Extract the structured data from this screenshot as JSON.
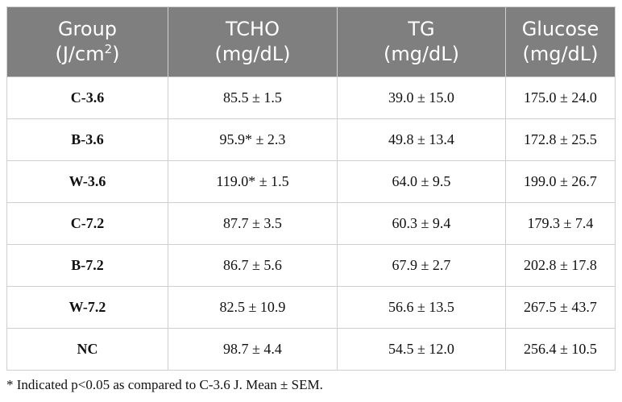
{
  "table": {
    "headers": [
      {
        "line1": "Group",
        "line2_prefix": "(J/cm",
        "line2_sup": "2",
        "line2_suffix": ")"
      },
      {
        "line1": "TCHO",
        "line2_prefix": "(mg/dL)",
        "line2_sup": "",
        "line2_suffix": ""
      },
      {
        "line1": "TG",
        "line2_prefix": "(mg/dL)",
        "line2_sup": "",
        "line2_suffix": ""
      },
      {
        "line1": "Glucose",
        "line2_prefix": "(mg/dL)",
        "line2_sup": "",
        "line2_suffix": ""
      }
    ],
    "rows": [
      [
        "C-3.6",
        "85.5 ± 1.5",
        "39.0 ± 15.0",
        "175.0 ± 24.0"
      ],
      [
        "B-3.6",
        "95.9* ± 2.3",
        "49.8 ± 13.4",
        "172.8 ± 25.5"
      ],
      [
        "W-3.6",
        "119.0* ± 1.5",
        "64.0 ± 9.5",
        "199.0 ± 26.7"
      ],
      [
        "C-7.2",
        "87.7 ± 3.5",
        "60.3 ± 9.4",
        "179.3 ± 7.4"
      ],
      [
        "B-7.2",
        "86.7 ± 5.6",
        "67.9 ± 2.7",
        "202.8 ± 17.8"
      ],
      [
        "W-7.2",
        "82.5 ± 10.9",
        "56.6 ± 13.5",
        "267.5 ± 43.7"
      ],
      [
        "NC",
        "98.7 ± 4.4",
        "54.5 ± 12.0",
        "256.4 ± 10.5"
      ]
    ]
  },
  "footnote": "* Indicated p<0.05 as compared to C-3.6 J. Mean ± SEM.",
  "colors": {
    "header_bg": "#7f7f7f",
    "header_text": "#ffffff",
    "grid": "#cfcfcf"
  }
}
